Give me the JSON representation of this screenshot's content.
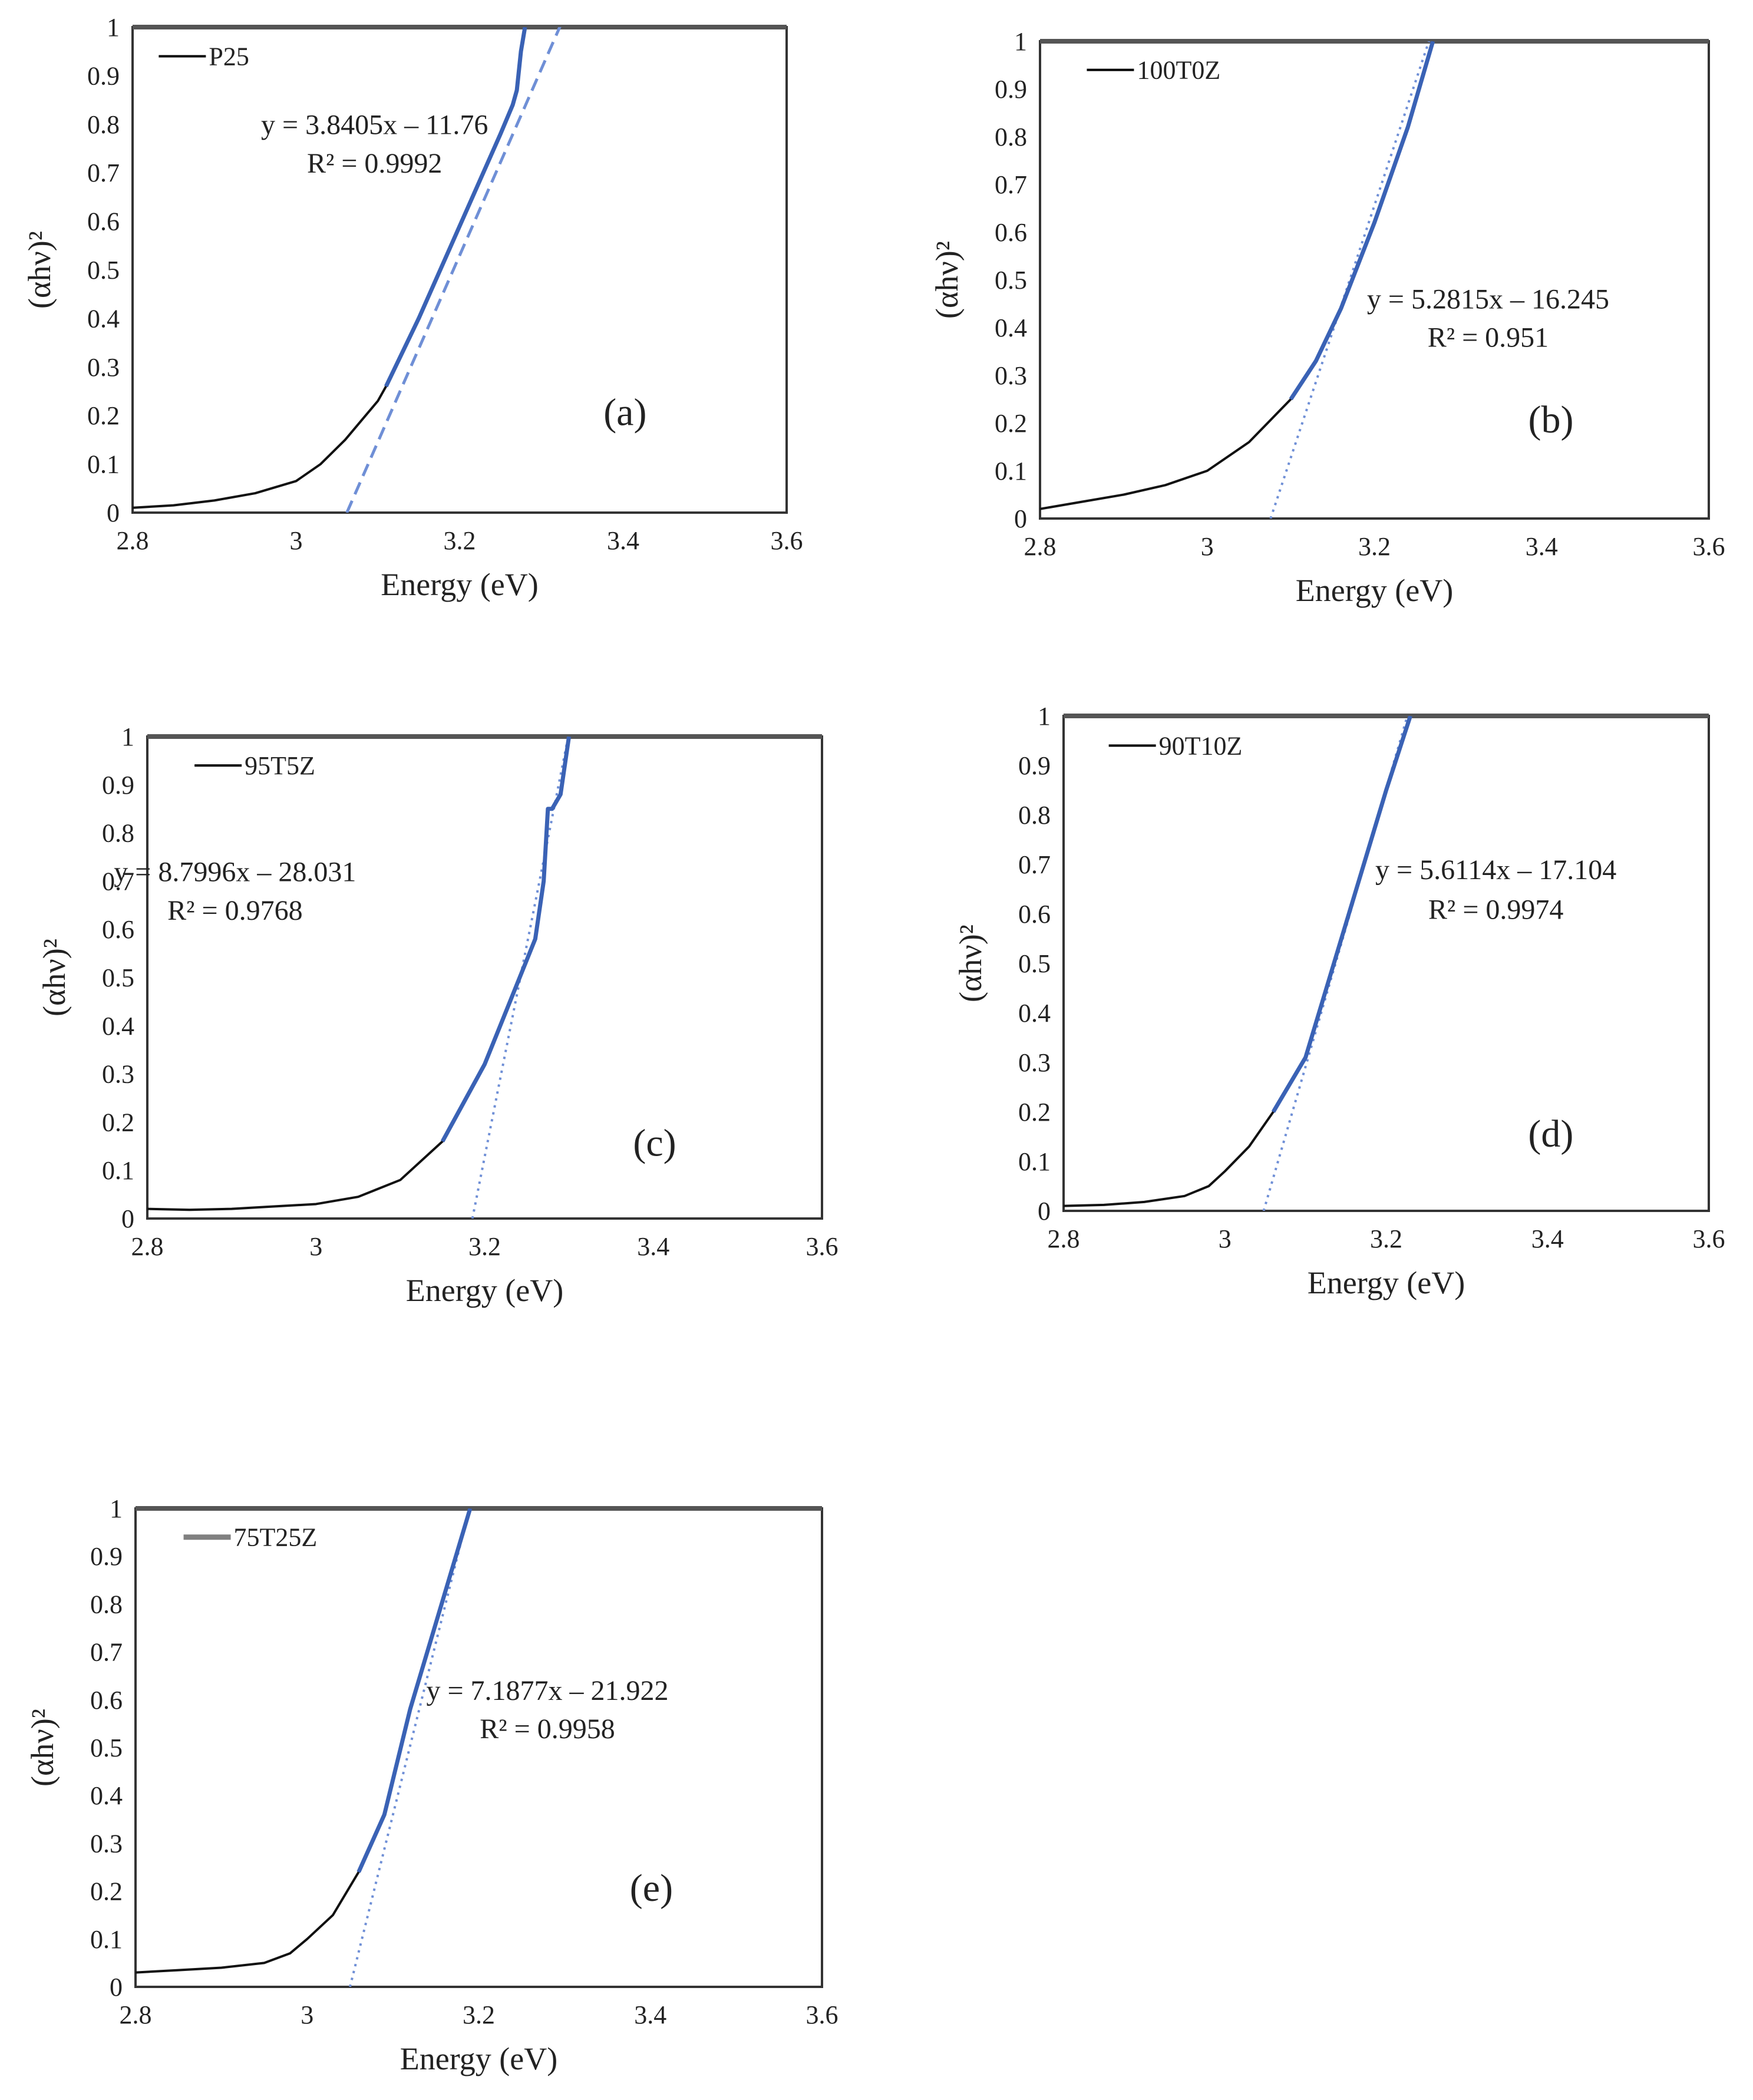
{
  "chart_data": [
    {
      "panel": "a",
      "type": "line",
      "panel_label": "(a)",
      "legend": "P25",
      "legend_color": "#000000",
      "xlabel": "Energy (eV)",
      "ylabel": "(αhν)²",
      "xlim": [
        2.8,
        3.6
      ],
      "ylim": [
        0,
        1
      ],
      "xticks": [
        "2.8",
        "3",
        "3.2",
        "3.4",
        "3.6"
      ],
      "yticks": [
        "0",
        "0.1",
        "0.2",
        "0.3",
        "0.4",
        "0.5",
        "0.6",
        "0.7",
        "0.8",
        "0.9",
        "1"
      ],
      "equation": "y = 3.8405x – 11.76",
      "r_squared": "R² = 0.9992",
      "fit_style": "dashed",
      "fit": {
        "slope": 3.8405,
        "intercept": -11.76
      },
      "data": {
        "x": [
          2.8,
          2.85,
          2.9,
          2.95,
          3.0,
          3.03,
          3.06,
          3.08,
          3.1,
          3.11,
          3.15,
          3.2,
          3.25,
          3.265,
          3.27,
          3.275,
          3.28
        ],
        "y": [
          0.01,
          0.015,
          0.025,
          0.04,
          0.065,
          0.1,
          0.15,
          0.19,
          0.23,
          0.26,
          0.4,
          0.59,
          0.78,
          0.84,
          0.87,
          0.95,
          1.0
        ]
      }
    },
    {
      "panel": "b",
      "type": "line",
      "panel_label": "(b)",
      "legend": "100T0Z",
      "legend_color": "#000000",
      "xlabel": "Energy (eV)",
      "ylabel": "(αhν)²",
      "xlim": [
        2.8,
        3.6
      ],
      "ylim": [
        0,
        1
      ],
      "xticks": [
        "2.8",
        "3",
        "3.2",
        "3.4",
        "3.6"
      ],
      "yticks": [
        "0",
        "0.1",
        "0.2",
        "0.3",
        "0.4",
        "0.5",
        "0.6",
        "0.7",
        "0.8",
        "0.9",
        "1"
      ],
      "equation": "y = 5.2815x – 16.245",
      "r_squared": "R² = 0.951",
      "fit_style": "dotted",
      "fit": {
        "slope": 5.2815,
        "intercept": -16.245
      },
      "data": {
        "x": [
          2.8,
          2.85,
          2.9,
          2.95,
          3.0,
          3.05,
          3.1,
          3.13,
          3.16,
          3.2,
          3.24,
          3.27
        ],
        "y": [
          0.02,
          0.035,
          0.05,
          0.07,
          0.1,
          0.16,
          0.25,
          0.33,
          0.44,
          0.62,
          0.82,
          1.0
        ]
      }
    },
    {
      "panel": "c",
      "type": "line",
      "panel_label": "(c)",
      "legend": "95T5Z",
      "legend_color": "#000000",
      "xlabel": "Energy (eV)",
      "ylabel": "(αhν)²",
      "xlim": [
        2.8,
        3.6
      ],
      "ylim": [
        0,
        1
      ],
      "xticks": [
        "2.8",
        "3",
        "3.2",
        "3.4",
        "3.6"
      ],
      "yticks": [
        "0",
        "0.1",
        "0.2",
        "0.3",
        "0.4",
        "0.5",
        "0.6",
        "0.7",
        "0.8",
        "0.9",
        "1"
      ],
      "equation": "y = 8.7996x – 28.031",
      "r_squared": "R² = 0.9768",
      "fit_style": "dotted",
      "fit": {
        "slope": 8.7996,
        "intercept": -28.031
      },
      "data": {
        "x": [
          2.8,
          2.85,
          2.9,
          2.95,
          3.0,
          3.05,
          3.1,
          3.15,
          3.2,
          3.23,
          3.26,
          3.27,
          3.275,
          3.28,
          3.29,
          3.3
        ],
        "y": [
          0.02,
          0.018,
          0.02,
          0.025,
          0.03,
          0.045,
          0.08,
          0.16,
          0.32,
          0.45,
          0.58,
          0.7,
          0.85,
          0.85,
          0.88,
          1.0
        ]
      }
    },
    {
      "panel": "d",
      "type": "line",
      "panel_label": "(d)",
      "legend": "90T10Z",
      "legend_color": "#000000",
      "xlabel": "Energy (eV)",
      "ylabel": "(αhν)²",
      "xlim": [
        2.8,
        3.6
      ],
      "ylim": [
        0,
        1
      ],
      "xticks": [
        "2.8",
        "3",
        "3.2",
        "3.4",
        "3.6"
      ],
      "yticks": [
        "0",
        "0.1",
        "0.2",
        "0.3",
        "0.4",
        "0.5",
        "0.6",
        "0.7",
        "0.8",
        "0.9",
        "1"
      ],
      "equation": "y = 5.6114x – 17.104",
      "r_squared": "R² = 0.9974",
      "fit_style": "dotted",
      "fit": {
        "slope": 5.6114,
        "intercept": -17.104
      },
      "data": {
        "x": [
          2.8,
          2.85,
          2.9,
          2.95,
          2.98,
          3.0,
          3.03,
          3.06,
          3.1,
          3.15,
          3.2,
          3.23
        ],
        "y": [
          0.01,
          0.012,
          0.018,
          0.03,
          0.05,
          0.08,
          0.13,
          0.2,
          0.31,
          0.58,
          0.85,
          1.0
        ]
      }
    },
    {
      "panel": "e",
      "type": "line",
      "panel_label": "(e)",
      "legend": "75T25Z",
      "legend_color": "#808080",
      "xlabel": "Energy (eV)",
      "ylabel": "(αhν)²",
      "xlim": [
        2.8,
        3.6
      ],
      "ylim": [
        0,
        1
      ],
      "xticks": [
        "2.8",
        "3",
        "3.2",
        "3.4",
        "3.6"
      ],
      "yticks": [
        "0",
        "0.1",
        "0.2",
        "0.3",
        "0.4",
        "0.5",
        "0.6",
        "0.7",
        "0.8",
        "0.9",
        "1"
      ],
      "equation": "y = 7.1877x – 21.922",
      "r_squared": "R² = 0.9958",
      "fit_style": "dotted",
      "fit": {
        "slope": 7.1877,
        "intercept": -21.922
      },
      "data": {
        "x": [
          2.8,
          2.85,
          2.9,
          2.95,
          2.98,
          3.0,
          3.03,
          3.06,
          3.09,
          3.12,
          3.15,
          3.19
        ],
        "y": [
          0.03,
          0.035,
          0.04,
          0.05,
          0.07,
          0.1,
          0.15,
          0.24,
          0.36,
          0.58,
          0.76,
          1.0
        ]
      }
    }
  ],
  "colors": {
    "curve": "#111111",
    "fit_line": "#3a62b5",
    "fit_extrapolation": "#6f8fd6",
    "frame": "#333333",
    "text": "#222222"
  }
}
